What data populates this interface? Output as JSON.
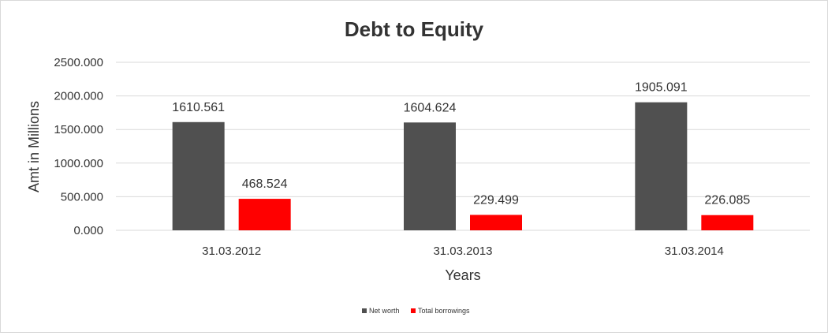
{
  "chart_data": {
    "type": "bar",
    "title": "Debt to Equity",
    "xlabel": "Years",
    "ylabel": "Amt in Millions",
    "categories": [
      "31.03.2012",
      "31.03.2013",
      "31.03.2014"
    ],
    "series": [
      {
        "name": "Net worth",
        "color": "#505050",
        "values": [
          1610.561,
          1604.624,
          1905.091
        ],
        "labels": [
          "1610.561",
          "1604.624",
          "1905.091"
        ]
      },
      {
        "name": "Total borrowings",
        "color": "#ff0000",
        "values": [
          468.524,
          229.499,
          226.085
        ],
        "labels": [
          "468.524",
          "229.499",
          "226.085"
        ]
      }
    ],
    "ylim": [
      0,
      2500
    ],
    "yticks": [
      0,
      500,
      1000,
      1500,
      2000,
      2500
    ],
    "ytick_labels": [
      "0.000",
      "500.000",
      "1000.000",
      "1500.000",
      "2000.000",
      "2500.000"
    ],
    "grid": true,
    "legend": "bottom",
    "gridline_color": "#d9d9d9"
  }
}
